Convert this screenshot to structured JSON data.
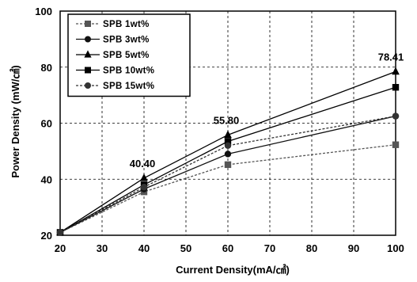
{
  "chart_data": {
    "type": "line",
    "title": "",
    "xlabel": "Current Density(mA/㎠)",
    "ylabel": "Power Density (mW/㎠)",
    "x": [
      20,
      40,
      60,
      100
    ],
    "xlim": [
      20,
      100
    ],
    "ylim": [
      20,
      100
    ],
    "xticks": [
      "20",
      "30",
      "40",
      "50",
      "60",
      "70",
      "80",
      "90",
      "100"
    ],
    "yticks": [
      "20",
      "40",
      "60",
      "80",
      "100"
    ],
    "grid": true,
    "legend_position": "top-left",
    "series": [
      {
        "name": "SPB 1wt%",
        "marker": "square",
        "color": "#555555",
        "dash": "3,2",
        "values": [
          21.0,
          35.5,
          45.2,
          52.3
        ]
      },
      {
        "name": "SPB 3wt%",
        "marker": "circle",
        "color": "#111111",
        "dash": "",
        "values": [
          21.0,
          36.5,
          49.0,
          62.5
        ]
      },
      {
        "name": "SPB 5wt%",
        "marker": "triangle",
        "color": "#000000",
        "dash": "",
        "values": [
          21.0,
          40.4,
          55.8,
          78.41
        ]
      },
      {
        "name": "SPB 10wt%",
        "marker": "square",
        "color": "#000000",
        "dash": "",
        "values": [
          21.0,
          38.0,
          53.5,
          72.8
        ]
      },
      {
        "name": "SPB 15wt%",
        "marker": "circle",
        "color": "#333333",
        "dash": "3,2",
        "values": [
          21.0,
          37.2,
          52.0,
          62.5
        ]
      }
    ],
    "annotations": [
      {
        "text": "40.40",
        "x": 40,
        "y": 40.4
      },
      {
        "text": "55.80",
        "x": 60,
        "y": 55.8
      },
      {
        "text": "78.41",
        "x": 100,
        "y": 78.41
      }
    ]
  }
}
